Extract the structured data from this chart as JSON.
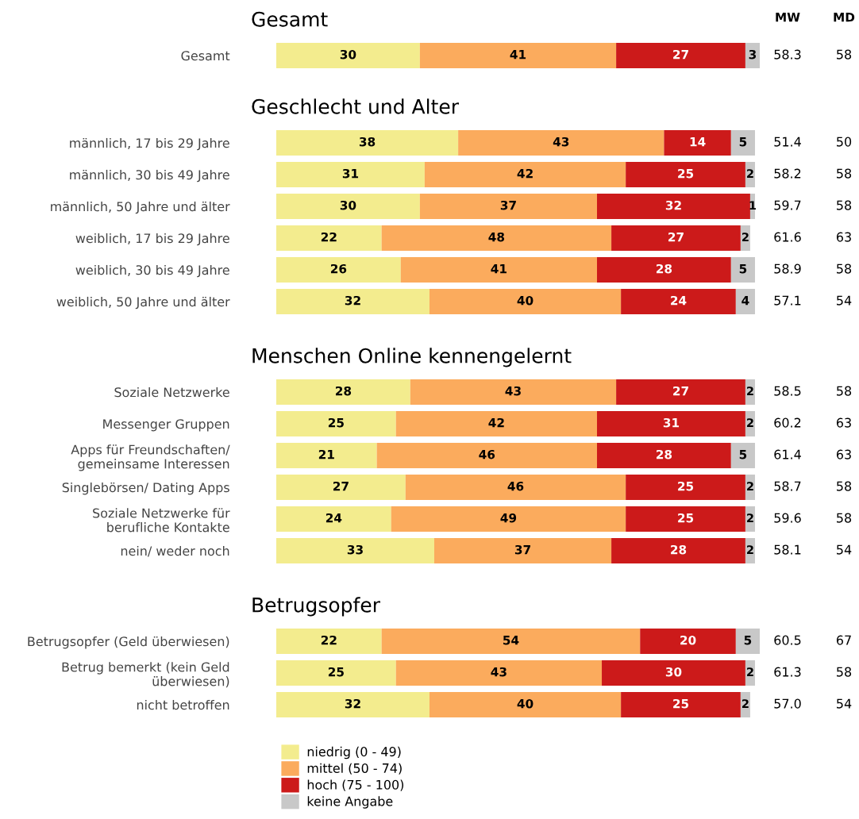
{
  "chart_data": [
    {
      "type": "bar",
      "orientation": "horizontal",
      "stacked": true,
      "title": "Gesamt",
      "categories": [
        "Gesamt"
      ],
      "tick_labels": "y",
      "data_labels": true,
      "legend": "bottom",
      "series": [
        {
          "name": "niedrig (0 - 49)",
          "color": "#f3ec8e",
          "values": [
            30
          ]
        },
        {
          "name": "mittel (50 - 74)",
          "color": "#fbab5d",
          "values": [
            41
          ]
        },
        {
          "name": "hoch (75 - 100)",
          "color": "#cc1a1a",
          "values": [
            27
          ]
        },
        {
          "name": "keine Angabe",
          "color": "#c8c8c8",
          "values": [
            3
          ]
        }
      ],
      "annotations": [
        "MW",
        "MD",
        "58.3",
        "58"
      ]
    },
    {
      "type": "bar",
      "orientation": "horizontal",
      "stacked": true,
      "title": "Geschlecht und Alter",
      "categories": [
        "männlich, 17 bis 29 Jahre",
        "männlich, 30 bis 49 Jahre",
        "männlich, 50 Jahre und älter",
        "weiblich, 17 bis 29 Jahre",
        "weiblich, 30 bis 49 Jahre",
        "weiblich, 50 Jahre und älter"
      ],
      "tick_labels": "y",
      "data_labels": true,
      "series": [
        {
          "color": "#f3ec8e",
          "values": [
            38,
            31,
            30,
            22,
            26,
            32
          ]
        },
        {
          "color": "#fbab5d",
          "values": [
            43,
            42,
            37,
            48,
            41,
            40
          ]
        },
        {
          "color": "#cc1a1a",
          "values": [
            14,
            25,
            32,
            27,
            28,
            24
          ]
        },
        {
          "color": "#c8c8c8",
          "values": [
            5,
            2,
            1,
            2,
            5,
            4
          ]
        }
      ],
      "annotations": [
        "51.4",
        "50",
        "58.2",
        "58",
        "59.7",
        "58",
        "61.6",
        "63",
        "58.9",
        "58",
        "57.1",
        "54"
      ]
    },
    {
      "type": "bar",
      "orientation": "horizontal",
      "stacked": true,
      "title": "Menschen Online kennengelernt",
      "categories": [
        "Soziale Netzwerke",
        "Messenger Gruppen",
        "Apps für Freundschaften/\ngemeinsame Interessen",
        "Singlebörsen/ Dating Apps",
        "Soziale Netzwerke für\nberufliche Kontakte",
        "nein/ weder noch"
      ],
      "tick_labels": "y",
      "data_labels": true,
      "series": [
        {
          "color": "#f3ec8e",
          "values": [
            28,
            25,
            21,
            27,
            24,
            33
          ]
        },
        {
          "color": "#fbab5d",
          "values": [
            43,
            42,
            46,
            46,
            49,
            37
          ]
        },
        {
          "color": "#cc1a1a",
          "values": [
            27,
            31,
            28,
            25,
            25,
            28
          ]
        },
        {
          "color": "#c8c8c8",
          "values": [
            2,
            2,
            5,
            2,
            2,
            2
          ]
        }
      ],
      "annotations": [
        "58.5",
        "58",
        "60.2",
        "63",
        "61.4",
        "63",
        "58.7",
        "58",
        "59.6",
        "58",
        "58.1",
        "54"
      ]
    },
    {
      "type": "bar",
      "orientation": "horizontal",
      "stacked": true,
      "title": "Betrugsopfer",
      "categories": [
        "Betrugsopfer (Geld überwiesen)",
        "Betrug bemerkt (kein Geld\nüberwiesen)",
        "nicht betroffen"
      ],
      "tick_labels": "y",
      "data_labels": true,
      "series": [
        {
          "color": "#f3ec8e",
          "values": [
            22,
            25,
            32
          ]
        },
        {
          "color": "#fbab5d",
          "values": [
            54,
            43,
            40
          ]
        },
        {
          "color": "#cc1a1a",
          "values": [
            20,
            30,
            25
          ]
        },
        {
          "color": "#c8c8c8",
          "values": [
            5,
            2,
            2
          ]
        }
      ],
      "annotations": [
        "60.5",
        "67",
        "61.3",
        "58",
        "57.0",
        "54"
      ]
    }
  ]
}
